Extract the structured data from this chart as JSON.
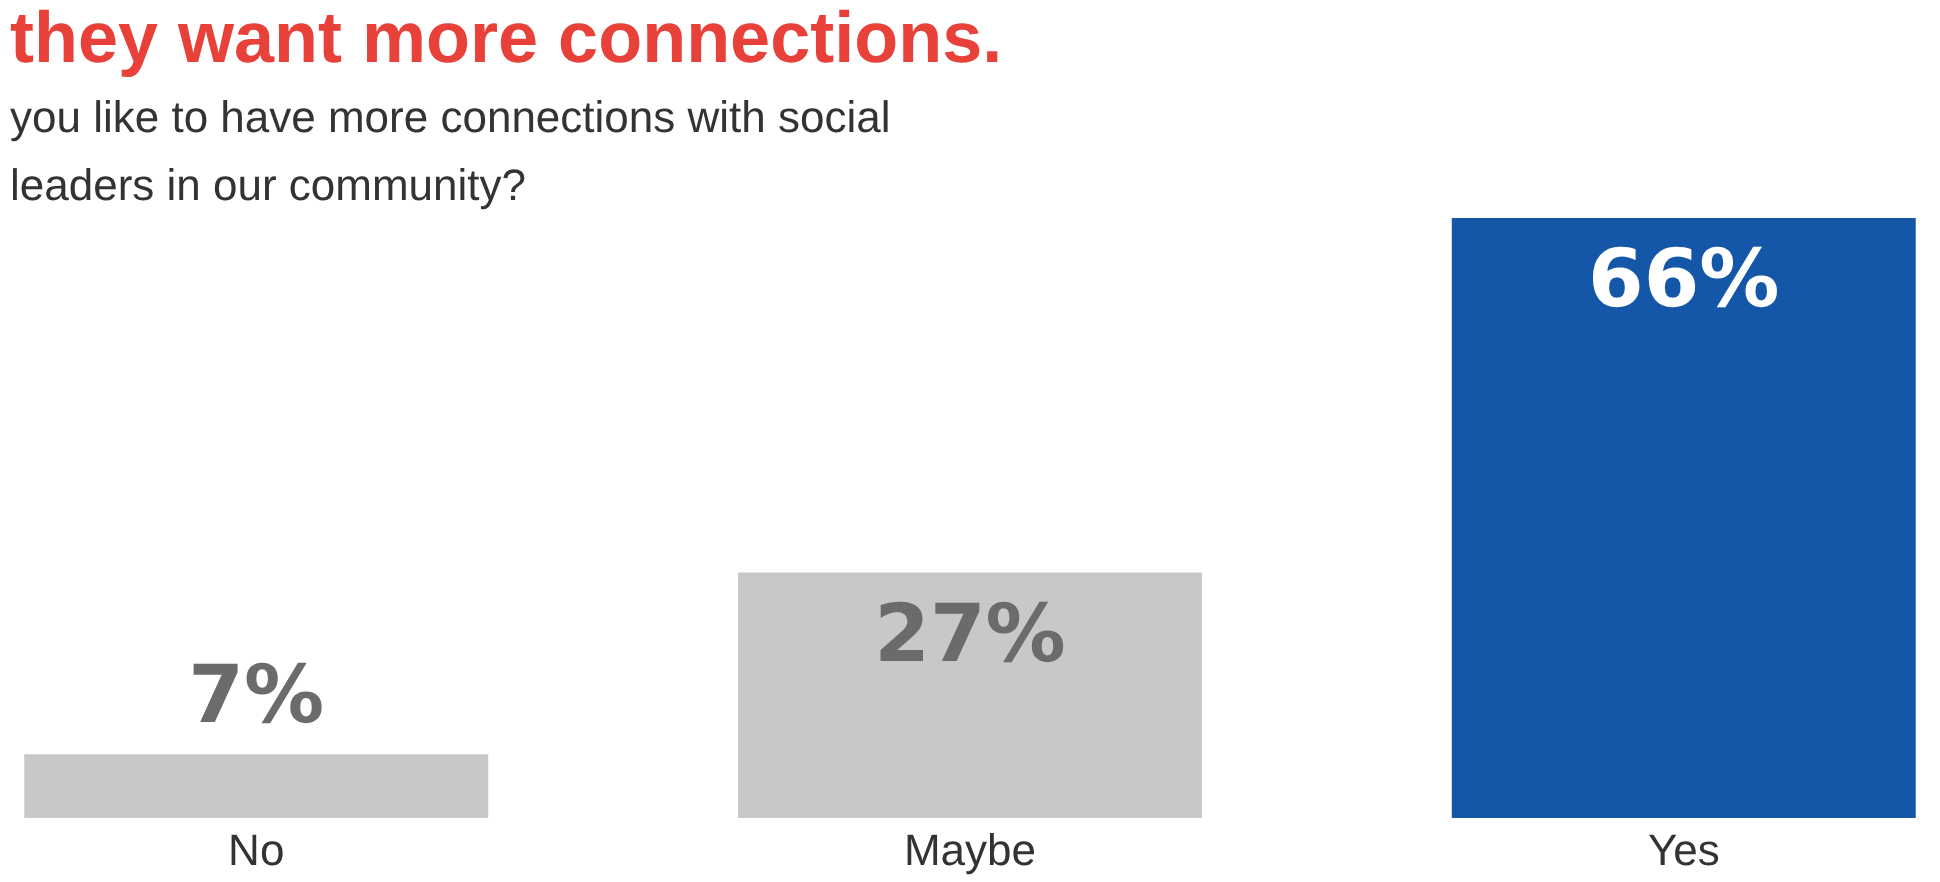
{
  "chart_data": {
    "type": "bar",
    "title": "they want more connections.",
    "subtitle": [
      "you like to have more connections with social",
      "leaders in our community?"
    ],
    "categories": [
      "No",
      "Maybe",
      "Yes"
    ],
    "values": [
      7,
      27,
      66
    ],
    "colors": [
      "#c8c8c8",
      "#c8c8c8",
      "#1457a8"
    ],
    "value_labels": [
      "7%",
      "27%",
      "66%"
    ],
    "grid": false
  }
}
